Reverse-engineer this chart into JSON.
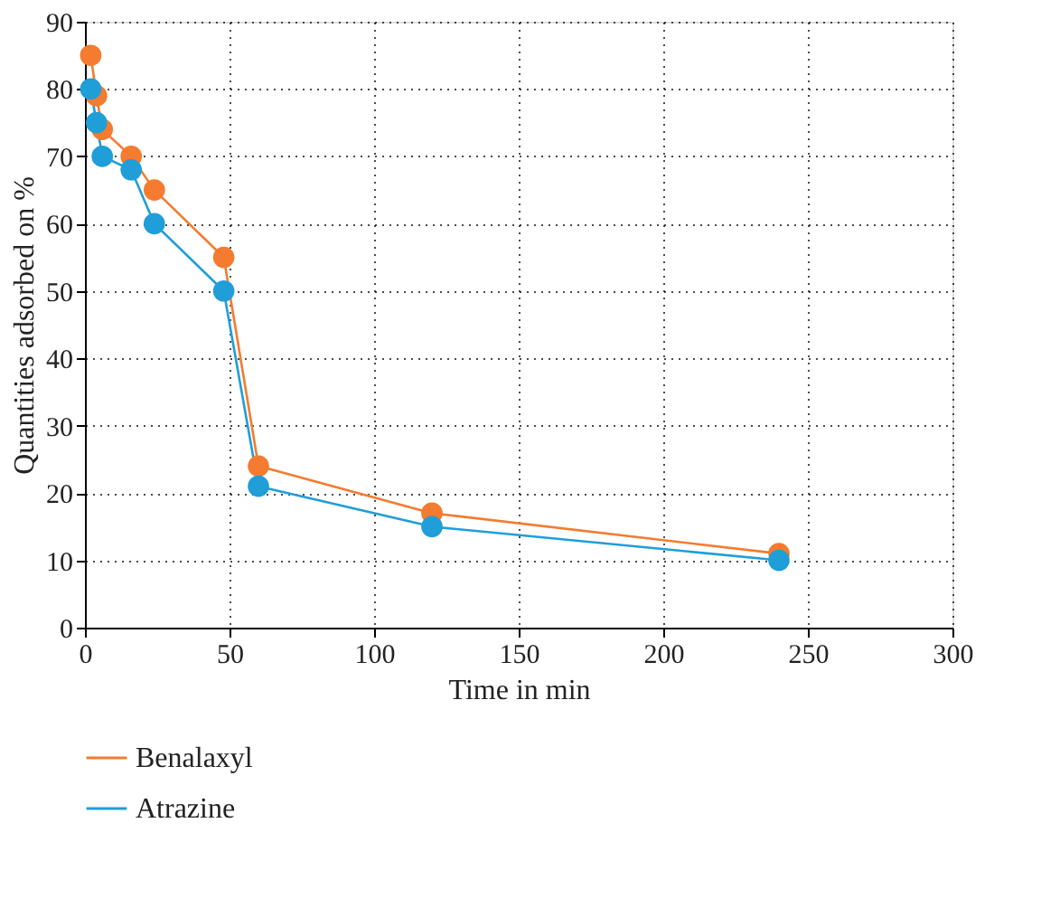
{
  "chart_data": {
    "type": "line",
    "xlabel": "Time in min",
    "ylabel": "Quantities adsorbed on %",
    "xlim": [
      0,
      300
    ],
    "xticks": [
      0,
      50,
      100,
      150,
      200,
      250,
      300
    ],
    "ylim": [
      0,
      90
    ],
    "yticks": [
      0,
      10,
      20,
      30,
      40,
      50,
      60,
      70,
      80,
      90
    ],
    "grid": true,
    "legend": "bottom",
    "marker": "circle",
    "line_style": "solid",
    "series": [
      {
        "name": "Benalaxyl",
        "color": "#f47b2f",
        "x": [
          2,
          4,
          6,
          16,
          24,
          48,
          60,
          120,
          240
        ],
        "values": [
          85,
          79,
          74,
          70,
          65,
          55,
          24,
          17,
          11
        ]
      },
      {
        "name": "Atrazine",
        "color": "#1f9ed8",
        "x": [
          2,
          4,
          6,
          16,
          24,
          48,
          60,
          120,
          240
        ],
        "values": [
          80,
          75,
          70,
          68,
          60,
          50,
          21,
          15,
          10
        ]
      }
    ]
  }
}
